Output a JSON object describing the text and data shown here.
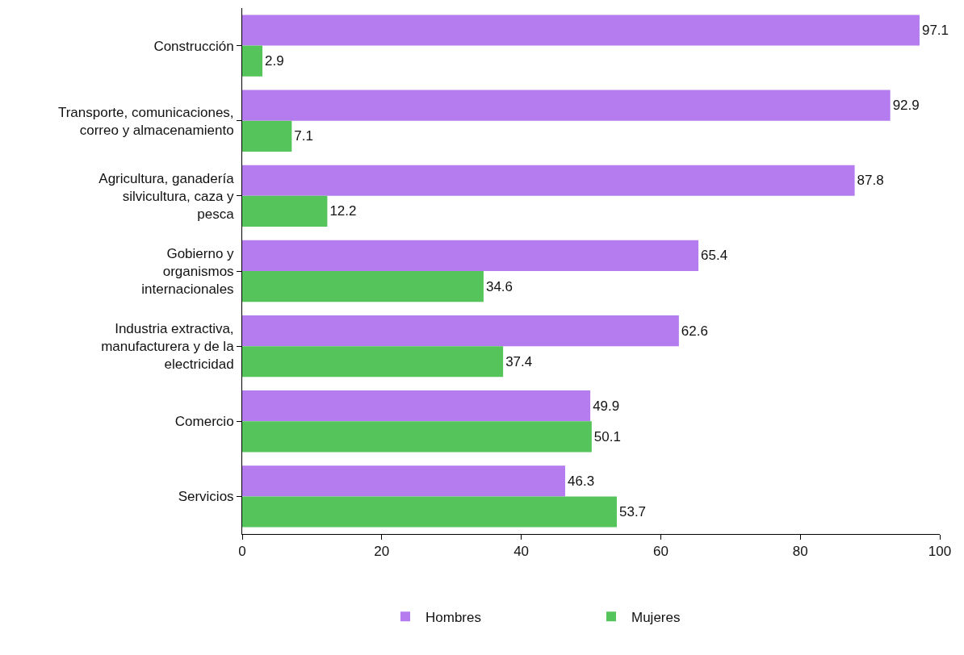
{
  "chart_data": {
    "type": "bar",
    "orientation": "horizontal",
    "categories": [
      "Construcción",
      "Transporte, comunicaciones,\ncorreo y almacenamiento",
      "Agricultura, ganadería\nsilvicultura, caza y\npesca",
      "Gobierno y\norganismos\ninternacionales",
      "Industria extractiva,\nmanufacturera y de la\nelectricidad",
      "Comercio",
      "Servicios"
    ],
    "series": [
      {
        "name": "Hombres",
        "color": "#b57cf0",
        "values": [
          97.1,
          92.9,
          87.8,
          65.4,
          62.6,
          49.9,
          46.3
        ]
      },
      {
        "name": "Mujeres",
        "color": "#55c45a",
        "values": [
          2.9,
          7.1,
          12.2,
          34.6,
          37.4,
          50.1,
          53.7
        ]
      }
    ],
    "xlim": [
      0,
      100
    ],
    "xticks": [
      0,
      20,
      40,
      60,
      80,
      100
    ],
    "data_labels": true,
    "legend": "bottom"
  }
}
